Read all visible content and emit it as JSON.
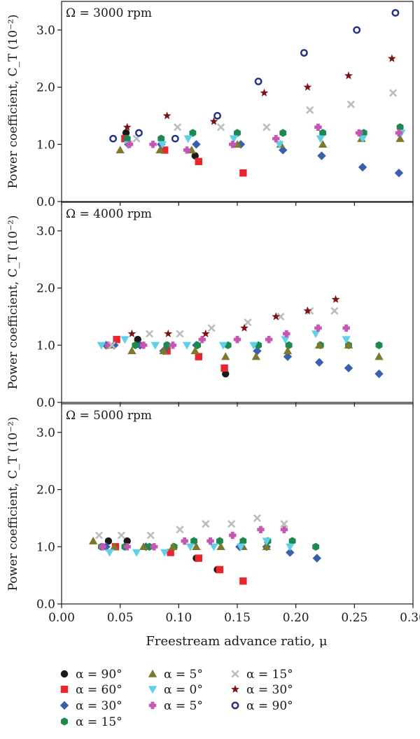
{
  "legend_entries": [
    {
      "key": "s1",
      "label": "α = 90°"
    },
    {
      "key": "s2",
      "label": "α = 60°"
    },
    {
      "key": "s3",
      "label": "α = 30°"
    },
    {
      "key": "s4",
      "label": "α = 15°"
    },
    {
      "key": "s5",
      "label": "α = 5°"
    },
    {
      "key": "s6",
      "label": "α = 0°"
    },
    {
      "key": "s7",
      "label": "α = 5°"
    },
    {
      "key": "s8",
      "label": "α = 15°"
    },
    {
      "key": "s9",
      "label": "α = 30°"
    },
    {
      "key": "s10",
      "label": "α = 90°"
    }
  ],
  "series_styles": {
    "s1": {
      "marker": "circle",
      "color": "#1a1a1a"
    },
    "s2": {
      "marker": "square",
      "color": "#e8262c"
    },
    "s3": {
      "marker": "diamond",
      "color": "#3a5fad"
    },
    "s4": {
      "marker": "hexagon",
      "color": "#1c8a4e"
    },
    "s5": {
      "marker": "triangle-up",
      "color": "#7c7a2a"
    },
    "s6": {
      "marker": "triangle-down",
      "color": "#5fd0e8"
    },
    "s7": {
      "marker": "plus",
      "color": "#c656b4"
    },
    "s8": {
      "marker": "x",
      "color": "#bdbdbd"
    },
    "s9": {
      "marker": "star",
      "color": "#7a1414"
    },
    "s10": {
      "marker": "open-circle",
      "color": "#22308a"
    }
  },
  "chart_data": [
    {
      "type": "scatter",
      "panel_label": "Ω = 3000 rpm",
      "ylabel": "Power coefficient, C_T (10⁻²)",
      "xlabel": "",
      "xlim": [
        0.0,
        0.3
      ],
      "ylim": [
        0.0,
        3.5
      ],
      "yticks": [
        0.0,
        1.0,
        2.0,
        3.0
      ],
      "yticklabels": [
        "0.0",
        "1.0",
        "2.0",
        "3.0"
      ],
      "xticks": [
        0.0,
        0.05,
        0.1,
        0.15,
        0.2,
        0.25,
        0.3
      ],
      "xticklabels": [],
      "series": [
        {
          "key": "s1",
          "x": [
            0.055,
            0.114
          ],
          "y": [
            1.2,
            0.8
          ]
        },
        {
          "key": "s2",
          "x": [
            0.054,
            0.088,
            0.117,
            0.155
          ],
          "y": [
            1.1,
            0.9,
            0.7,
            0.5
          ]
        },
        {
          "key": "s3",
          "x": [
            0.057,
            0.085,
            0.115,
            0.153,
            0.189,
            0.222,
            0.257,
            0.288
          ],
          "y": [
            1.0,
            1.0,
            1.0,
            1.0,
            0.9,
            0.8,
            0.6,
            0.5
          ]
        },
        {
          "key": "s4",
          "x": [
            0.056,
            0.085,
            0.112,
            0.15,
            0.189,
            0.223,
            0.258,
            0.289
          ],
          "y": [
            1.1,
            1.1,
            1.2,
            1.2,
            1.2,
            1.2,
            1.2,
            1.3
          ]
        },
        {
          "key": "s5",
          "x": [
            0.05,
            0.084,
            0.111,
            0.15,
            0.187,
            0.223,
            0.256,
            0.289
          ],
          "y": [
            0.9,
            0.9,
            0.9,
            1.0,
            1.0,
            1.0,
            1.1,
            1.1
          ]
        },
        {
          "key": "s6",
          "x": [
            0.057,
            0.086,
            0.108,
            0.147,
            0.186,
            0.221,
            0.257,
            0.29
          ],
          "y": [
            1.0,
            1.0,
            1.1,
            1.1,
            1.0,
            1.1,
            1.1,
            1.2
          ]
        },
        {
          "key": "s7",
          "x": [
            0.058,
            0.078,
            0.107,
            0.146,
            0.183,
            0.219,
            0.254,
            0.288
          ],
          "y": [
            1.0,
            1.0,
            0.9,
            1.0,
            1.1,
            1.3,
            1.2,
            1.2
          ]
        },
        {
          "key": "s8",
          "x": [
            0.064,
            0.099,
            0.136,
            0.175,
            0.212,
            0.247,
            0.283
          ],
          "y": [
            1.1,
            1.3,
            1.3,
            1.3,
            1.6,
            1.7,
            1.9
          ]
        },
        {
          "key": "s9",
          "x": [
            0.056,
            0.09,
            0.13,
            0.173,
            0.21,
            0.245,
            0.282
          ],
          "y": [
            1.3,
            1.5,
            1.4,
            1.9,
            2.0,
            2.2,
            2.5
          ]
        },
        {
          "key": "s10",
          "x": [
            0.044,
            0.066,
            0.097,
            0.133,
            0.168,
            0.207,
            0.252,
            0.285
          ],
          "y": [
            1.1,
            1.2,
            1.1,
            1.5,
            2.1,
            2.6,
            3.0,
            3.3
          ]
        }
      ]
    },
    {
      "type": "scatter",
      "panel_label": "Ω = 4000 rpm",
      "ylabel": "Power coefficient, C_T (10⁻²)",
      "xlabel": "",
      "xlim": [
        0.0,
        0.3
      ],
      "ylim": [
        0.0,
        3.5
      ],
      "yticks": [
        0.0,
        1.0,
        2.0,
        3.0
      ],
      "yticklabels": [
        "0.0",
        "1.0",
        "2.0",
        "3.0"
      ],
      "xticks": [
        0.0,
        0.05,
        0.1,
        0.15,
        0.2,
        0.25,
        0.3
      ],
      "xticklabels": [],
      "series": [
        {
          "key": "s1",
          "x": [
            0.065,
            0.09,
            0.14
          ],
          "y": [
            1.1,
            1.0,
            0.5
          ]
        },
        {
          "key": "s2",
          "x": [
            0.047,
            0.09,
            0.117,
            0.139
          ],
          "y": [
            1.1,
            0.9,
            0.8,
            0.6
          ]
        },
        {
          "key": "s3",
          "x": [
            0.038,
            0.045,
            0.067,
            0.087,
            0.115,
            0.167,
            0.193,
            0.22,
            0.245,
            0.271
          ],
          "y": [
            1.0,
            1.0,
            1.0,
            0.9,
            1.0,
            0.9,
            0.8,
            0.7,
            0.6,
            0.5
          ]
        },
        {
          "key": "s4",
          "x": [
            0.063,
            0.09,
            0.116,
            0.142,
            0.168,
            0.194,
            0.221,
            0.245,
            0.271
          ],
          "y": [
            1.0,
            1.0,
            1.0,
            1.0,
            1.0,
            1.0,
            1.0,
            1.0,
            1.0
          ]
        },
        {
          "key": "s5",
          "x": [
            0.04,
            0.06,
            0.087,
            0.114,
            0.14,
            0.166,
            0.193,
            0.22,
            0.245,
            0.271
          ],
          "y": [
            1.0,
            0.9,
            0.9,
            0.9,
            0.8,
            0.8,
            0.9,
            1.0,
            1.0,
            0.8
          ]
        },
        {
          "key": "s6",
          "x": [
            0.034,
            0.054,
            0.08,
            0.107,
            0.138,
            0.164,
            0.191,
            0.217,
            0.243
          ],
          "y": [
            1.0,
            1.1,
            1.0,
            1.0,
            1.0,
            1.0,
            1.1,
            1.2,
            1.1
          ]
        },
        {
          "key": "s7",
          "x": [
            0.04,
            0.07,
            0.095,
            0.12,
            0.15,
            0.177,
            0.192,
            0.219,
            0.243
          ],
          "y": [
            1.0,
            1.0,
            1.0,
            1.1,
            1.1,
            1.1,
            1.2,
            1.3,
            1.3
          ]
        },
        {
          "key": "s8",
          "x": [
            0.043,
            0.075,
            0.101,
            0.128,
            0.159,
            0.187,
            0.212,
            0.233
          ],
          "y": [
            1.0,
            1.2,
            1.2,
            1.3,
            1.4,
            1.5,
            1.6,
            1.6
          ]
        },
        {
          "key": "s9",
          "x": [
            0.06,
            0.091,
            0.123,
            0.156,
            0.183,
            0.21,
            0.234
          ],
          "y": [
            1.2,
            1.2,
            1.2,
            1.3,
            1.5,
            1.6,
            1.8
          ]
        },
        {
          "key": "s10",
          "x": [],
          "y": []
        }
      ]
    },
    {
      "type": "scatter",
      "panel_label": "Ω = 5000 rpm",
      "ylabel": "Power coefficient, C_T (10⁻²)",
      "xlabel": "Freestream advance ratio, μ",
      "xlim": [
        0.0,
        0.3
      ],
      "ylim": [
        0.0,
        3.5
      ],
      "yticks": [
        0.0,
        1.0,
        2.0,
        3.0
      ],
      "yticklabels": [
        "0.0",
        "1.0",
        "2.0",
        "3.0"
      ],
      "xticks": [
        0.0,
        0.05,
        0.1,
        0.15,
        0.2,
        0.25,
        0.3
      ],
      "xticklabels": [
        "0.00",
        "0.05",
        "0.10",
        "0.15",
        "0.20",
        "0.25",
        "0.30"
      ],
      "series": [
        {
          "key": "s1",
          "x": [
            0.04,
            0.056,
            0.115,
            0.133
          ],
          "y": [
            1.1,
            1.1,
            0.8,
            0.6
          ]
        },
        {
          "key": "s2",
          "x": [
            0.046,
            0.093,
            0.117,
            0.135,
            0.155
          ],
          "y": [
            1.0,
            0.9,
            0.8,
            0.6,
            0.4
          ]
        },
        {
          "key": "s3",
          "x": [
            0.038,
            0.072,
            0.152,
            0.175,
            0.195,
            0.218
          ],
          "y": [
            1.0,
            1.0,
            1.0,
            1.0,
            0.9,
            0.8
          ]
        },
        {
          "key": "s4",
          "x": [
            0.034,
            0.054,
            0.075,
            0.096,
            0.113,
            0.135,
            0.155,
            0.176,
            0.197,
            0.217
          ],
          "y": [
            1.0,
            1.0,
            1.0,
            1.0,
            1.1,
            1.1,
            1.1,
            1.1,
            1.1,
            1.0
          ]
        },
        {
          "key": "s5",
          "x": [
            0.027,
            0.045,
            0.07,
            0.095,
            0.115,
            0.136,
            0.155,
            0.175
          ],
          "y": [
            1.1,
            1.0,
            1.0,
            1.0,
            1.0,
            1.0,
            1.0,
            1.0
          ]
        },
        {
          "key": "s6",
          "x": [
            0.041,
            0.064,
            0.088,
            0.11,
            0.13,
            0.153,
            0.175,
            0.195
          ],
          "y": [
            0.9,
            0.9,
            0.9,
            1.0,
            1.0,
            1.0,
            1.1,
            1.0
          ]
        },
        {
          "key": "s7",
          "x": [
            0.035,
            0.056,
            0.079,
            0.105,
            0.127,
            0.146,
            0.17,
            0.19
          ],
          "y": [
            1.0,
            1.0,
            1.0,
            1.1,
            1.1,
            1.2,
            1.3,
            1.3
          ]
        },
        {
          "key": "s8",
          "x": [
            0.032,
            0.051,
            0.076,
            0.101,
            0.123,
            0.145,
            0.167,
            0.19
          ],
          "y": [
            1.2,
            1.2,
            1.2,
            1.3,
            1.4,
            1.4,
            1.5,
            1.4
          ]
        },
        {
          "key": "s9",
          "x": [],
          "y": []
        },
        {
          "key": "s10",
          "x": [],
          "y": []
        }
      ]
    }
  ]
}
